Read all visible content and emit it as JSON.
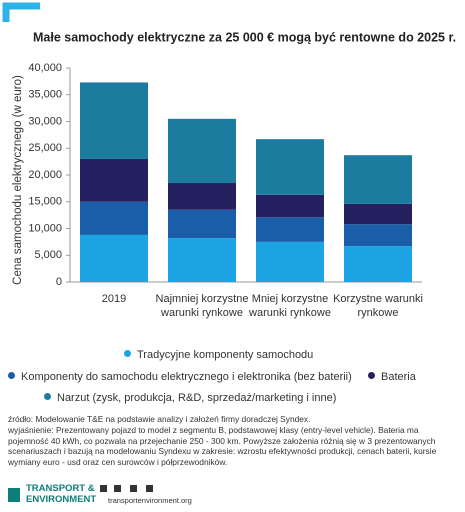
{
  "chart_data": {
    "type": "stacked_bar",
    "title": "Małe samochody elektryczne za 25 000 € mogą być rentowne do 2025 r.",
    "y_label": "Cena samochodu elektrycznego (w euro)",
    "categories": [
      "2019",
      "Najmniej korzystne warunki rynkowe",
      "Mniej korzystne warunki rynkowe",
      "Korzystne warunki rynkowe"
    ],
    "series": [
      {
        "name": "Tradycyjne komponenty samochodu",
        "color": "#1ba3e3",
        "values": [
          8800,
          8200,
          7500,
          6700
        ]
      },
      {
        "name": "Komponenty do samochodu elektrycznego i elektronika (bez baterii)",
        "color": "#1a5da8",
        "values": [
          6200,
          5300,
          4600,
          4100
        ]
      },
      {
        "name": "Bateria",
        "color": "#25205f",
        "values": [
          8000,
          5000,
          4200,
          3800
        ]
      },
      {
        "name": "Narzut (zysk, produkcja, R&D, sprzedaż/marketing i inne)",
        "color": "#1c7c9f",
        "values": [
          14300,
          12000,
          10400,
          9100
        ]
      }
    ],
    "ylim": [
      0,
      40000
    ],
    "yticks": [
      0,
      {
        "value": 5000,
        "label": "5,000"
      },
      {
        "value": 10000,
        "label": "10,000"
      },
      {
        "value": 15000,
        "label": "15,000"
      },
      {
        "value": 20000,
        "label": "20,000"
      },
      {
        "value": 25000,
        "label": "25,000"
      },
      {
        "value": 30000,
        "label": "30,000"
      },
      {
        "value": 35000,
        "label": "35,000"
      },
      {
        "value": 40000,
        "label": "40,000"
      }
    ],
    "grid": false
  },
  "footer": {
    "notes": [
      "źródło: Modelowanie T&E na podstawie analizy i założeń firmy doradczej Syndex.",
      "wyjaśnienie: Prezentowany pojazd to model z segmentu B, podstawowej klasy (entry-level vehicle). Bateria ma pojemność 40 kWh, co pozwala na przejechanie 250 - 300 km. Powyższe założenia różnią się w 3 prezentowanych scenariuszach i bazują na modelowaniu Syndexu w zakresie: wzrostu efektywności produkcji, cenach baterii, kursie wymiany euro - usd oraz cen surowców i półprzewodników."
    ],
    "logo": [
      "TRANSPORT &",
      "ENVIRONMENT"
    ],
    "website": "transportenvironment.org"
  }
}
